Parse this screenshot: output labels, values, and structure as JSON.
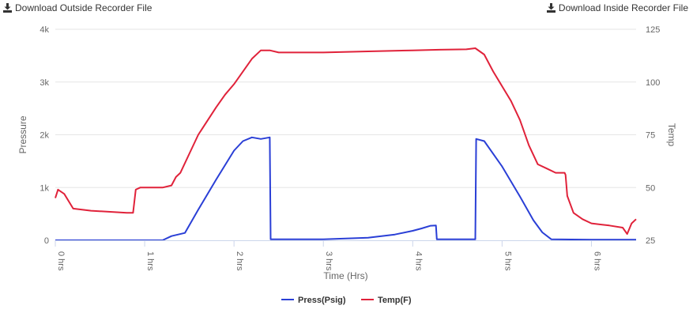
{
  "downloads": {
    "outside_label": "Download Outside Recorder File",
    "inside_label": "Download Inside Recorder File"
  },
  "chart_data": {
    "type": "line",
    "title": "",
    "xlabel": "Time (Hrs)",
    "ylabel_left": "Pressure",
    "ylabel_right": "Temp",
    "xlim": [
      0,
      6.5
    ],
    "x_ticks": [
      0,
      1,
      2,
      3,
      4,
      5,
      6
    ],
    "x_tick_labels": [
      "0 hrs",
      "1 hrs",
      "2 hrs",
      "3 hrs",
      "4 hrs",
      "5 hrs",
      "6 hrs"
    ],
    "ylim_left": [
      0,
      4000
    ],
    "y_left_ticks": [
      0,
      1000,
      2000,
      3000,
      4000
    ],
    "y_left_tick_labels": [
      "0",
      "1k",
      "2k",
      "3k",
      "4k"
    ],
    "ylim_right": [
      25,
      125
    ],
    "y_right_ticks": [
      25,
      50,
      75,
      100,
      125
    ],
    "y_right_tick_labels": [
      "25",
      "50",
      "75",
      "100",
      "125"
    ],
    "grid": true,
    "legend_position": "bottom-center",
    "series": [
      {
        "name": "Press(Psig)",
        "axis": "left",
        "color": "#2a3fd6",
        "x": [
          0,
          1.2,
          1.3,
          1.45,
          1.6,
          1.8,
          2.0,
          2.1,
          2.2,
          2.3,
          2.4,
          2.41,
          2.42,
          3.0,
          3.5,
          3.8,
          4.0,
          4.1,
          4.2,
          4.26,
          4.27,
          4.5,
          4.7,
          4.71,
          4.8,
          5.0,
          5.2,
          5.35,
          5.45,
          5.55,
          6.0,
          6.5
        ],
        "values": [
          0,
          0,
          80,
          140,
          580,
          1150,
          1700,
          1880,
          1950,
          1920,
          1950,
          20,
          20,
          20,
          50,
          110,
          180,
          225,
          275,
          280,
          20,
          20,
          20,
          1920,
          1880,
          1400,
          830,
          380,
          150,
          20,
          10,
          10
        ]
      },
      {
        "name": "Temp(F)",
        "axis": "right",
        "color": "#e0223a",
        "x": [
          0,
          0.03,
          0.1,
          0.2,
          0.4,
          0.8,
          0.87,
          0.9,
          0.95,
          1.1,
          1.2,
          1.3,
          1.35,
          1.4,
          1.5,
          1.6,
          1.8,
          1.9,
          2.0,
          2.1,
          2.2,
          2.3,
          2.4,
          2.5,
          3.0,
          3.5,
          4.0,
          4.3,
          4.6,
          4.7,
          4.8,
          4.9,
          5.0,
          5.1,
          5.2,
          5.3,
          5.4,
          5.5,
          5.6,
          5.7,
          5.71,
          5.73,
          5.8,
          5.9,
          6.0,
          6.2,
          6.35,
          6.4,
          6.45,
          6.5
        ],
        "values": [
          45,
          49,
          47,
          40,
          39,
          38,
          38,
          49,
          50,
          50,
          50,
          51,
          55,
          57,
          66,
          75,
          88,
          94,
          99,
          105,
          111,
          115,
          115,
          114,
          114,
          114.5,
          115,
          115.3,
          115.5,
          116,
          113,
          105,
          98,
          91,
          82,
          70,
          61,
          59,
          57,
          57,
          56,
          46,
          38,
          35,
          33,
          32,
          31,
          28,
          33,
          35
        ]
      }
    ]
  }
}
